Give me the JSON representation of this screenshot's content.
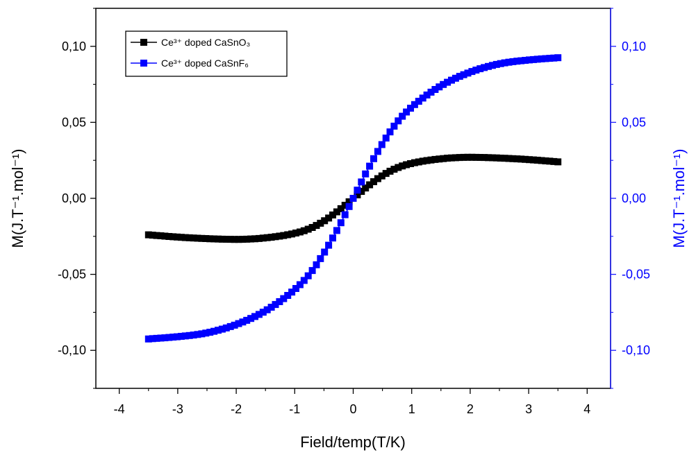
{
  "chart_data": {
    "type": "scatter",
    "xlabel": "Field/temp(T/K)",
    "ylabel_left": "M(J.T⁻¹.mol⁻¹)",
    "ylabel_right": "M(J.T⁻¹.mol⁻¹)",
    "xlim": [
      -4.4,
      4.4
    ],
    "ylim": [
      -0.125,
      0.125
    ],
    "x_ticks": [
      -4,
      -3,
      -2,
      -1,
      0,
      1,
      2,
      3,
      4
    ],
    "x_tick_labels": [
      "-4",
      "-3",
      "-2",
      "-1",
      "0",
      "1",
      "2",
      "3",
      "4"
    ],
    "y_ticks": [
      -0.1,
      -0.05,
      0.0,
      0.05,
      0.1
    ],
    "y_tick_labels": [
      "-0,10",
      "-0,05",
      "0,00",
      "0,05",
      "0,10"
    ],
    "grid": false,
    "legend_placement": "top-left",
    "series": [
      {
        "name": "Ce³⁺ doped CaSnO₃",
        "axis": "left",
        "color": "#000000",
        "x": [
          -3.5,
          -3.0,
          -2.5,
          -2.0,
          -1.5,
          -1.0,
          -0.75,
          -0.5,
          -0.25,
          0.0,
          0.25,
          0.5,
          0.75,
          1.0,
          1.5,
          2.0,
          2.5,
          3.0,
          3.5
        ],
        "y": [
          -0.024,
          -0.0255,
          -0.0265,
          -0.027,
          -0.026,
          -0.023,
          -0.02,
          -0.015,
          -0.008,
          0.0,
          0.008,
          0.015,
          0.02,
          0.023,
          0.026,
          0.027,
          0.0265,
          0.0255,
          0.024
        ]
      },
      {
        "name": "Ce³⁺ doped CaSnF₆",
        "axis": "right",
        "color": "#0000ff",
        "x": [
          -3.5,
          -3.0,
          -2.5,
          -2.0,
          -1.5,
          -1.0,
          -0.75,
          -0.5,
          -0.25,
          0.0,
          0.25,
          0.5,
          0.75,
          1.0,
          1.5,
          2.0,
          2.5,
          3.0,
          3.5
        ],
        "y": [
          -0.0925,
          -0.091,
          -0.0885,
          -0.083,
          -0.074,
          -0.06,
          -0.05,
          -0.036,
          -0.019,
          0.0,
          0.019,
          0.036,
          0.05,
          0.06,
          0.074,
          0.083,
          0.0885,
          0.091,
          0.0925
        ]
      }
    ]
  }
}
